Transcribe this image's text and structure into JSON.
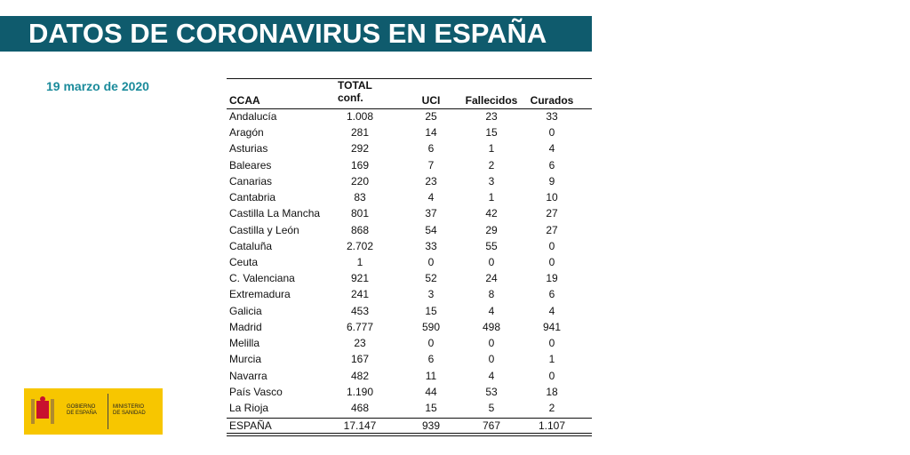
{
  "header": {
    "title": "DATOS DE CORONAVIRUS EN ESPAÑA"
  },
  "date": "19 marzo de 2020",
  "table": {
    "columns": [
      "CCAA",
      "TOTAL conf.",
      "UCI",
      "Fallecidos",
      "Curados"
    ],
    "rows": [
      [
        "Andalucía",
        "1.008",
        "25",
        "23",
        "33"
      ],
      [
        "Aragón",
        "281",
        "14",
        "15",
        "0"
      ],
      [
        "Asturias",
        "292",
        "6",
        "1",
        "4"
      ],
      [
        "Baleares",
        "169",
        "7",
        "2",
        "6"
      ],
      [
        "Canarias",
        "220",
        "23",
        "3",
        "9"
      ],
      [
        "Cantabria",
        "83",
        "4",
        "1",
        "10"
      ],
      [
        "Castilla La Mancha",
        "801",
        "37",
        "42",
        "27"
      ],
      [
        "Castilla y León",
        "868",
        "54",
        "29",
        "27"
      ],
      [
        "Cataluña",
        "2.702",
        "33",
        "55",
        "0"
      ],
      [
        "Ceuta",
        "1",
        "0",
        "0",
        "0"
      ],
      [
        "C. Valenciana",
        "921",
        "52",
        "24",
        "19"
      ],
      [
        "Extremadura",
        "241",
        "3",
        "8",
        "6"
      ],
      [
        "Galicia",
        "453",
        "15",
        "4",
        "4"
      ],
      [
        "Madrid",
        "6.777",
        "590",
        "498",
        "941"
      ],
      [
        "Melilla",
        "23",
        "0",
        "0",
        "0"
      ],
      [
        "Murcia",
        "167",
        "6",
        "0",
        "1"
      ],
      [
        "Navarra",
        "482",
        "11",
        "4",
        "0"
      ],
      [
        "País Vasco",
        "1.190",
        "44",
        "53",
        "18"
      ],
      [
        "La Rioja",
        "468",
        "15",
        "5",
        "2"
      ]
    ],
    "total": [
      "ESPAÑA",
      "17.147",
      "939",
      "767",
      "1.107"
    ]
  },
  "logo": {
    "left": "GOBIERNO DE ESPAÑA",
    "right": "MINISTERIO DE SANIDAD"
  }
}
